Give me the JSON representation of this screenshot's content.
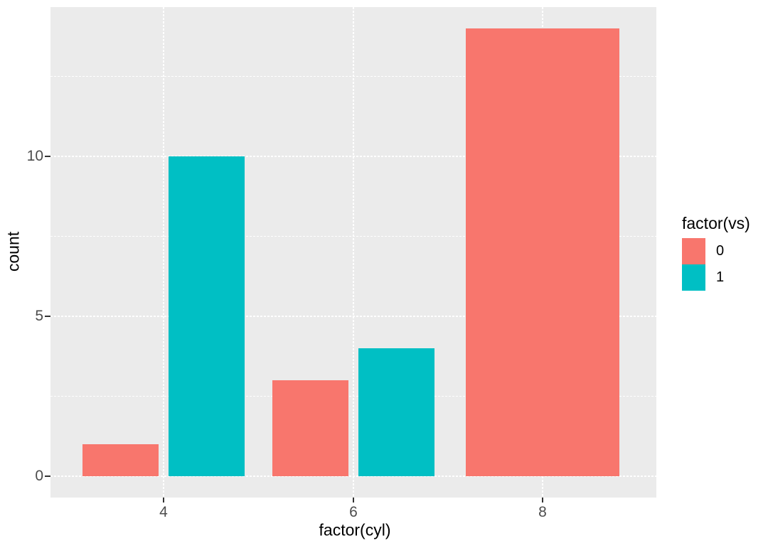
{
  "chart_data": {
    "type": "bar",
    "title": "",
    "xlabel": "factor(cyl)",
    "ylabel": "count",
    "categories": [
      "4",
      "6",
      "8"
    ],
    "series": [
      {
        "name": "0",
        "color": "#F8766D",
        "values": [
          1,
          3,
          14
        ]
      },
      {
        "name": "1",
        "color": "#00BFC4",
        "values": [
          10,
          4,
          null
        ]
      }
    ],
    "legend": {
      "title": "factor(vs)",
      "position": "right"
    },
    "y_ticks": [
      0,
      5,
      10
    ],
    "y_minor_ticks": [
      2.5,
      7.5,
      12.5
    ],
    "ylim": [
      -0.7,
      14.7
    ],
    "grid": "on",
    "bar_position": "dodge",
    "panel_background": "#EBEBEB",
    "grid_color": "#FFFFFF",
    "tick_label_color": "#4d4d4d"
  }
}
